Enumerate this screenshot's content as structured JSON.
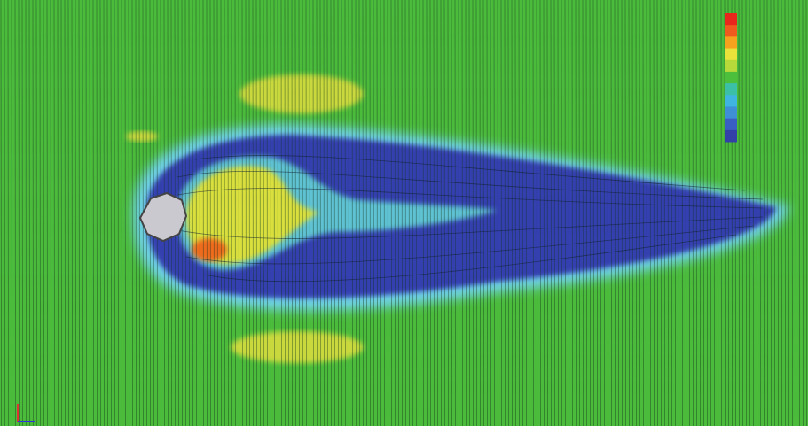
{
  "legend": {
    "colors": [
      "#e8261c",
      "#f05a1e",
      "#f7a21f",
      "#e9e23a",
      "#b8d93a",
      "#4cbf3c",
      "#3bbfa6",
      "#3fb4e0",
      "#3f8fd6",
      "#3a5fc4",
      "#3340a8"
    ]
  }
}
